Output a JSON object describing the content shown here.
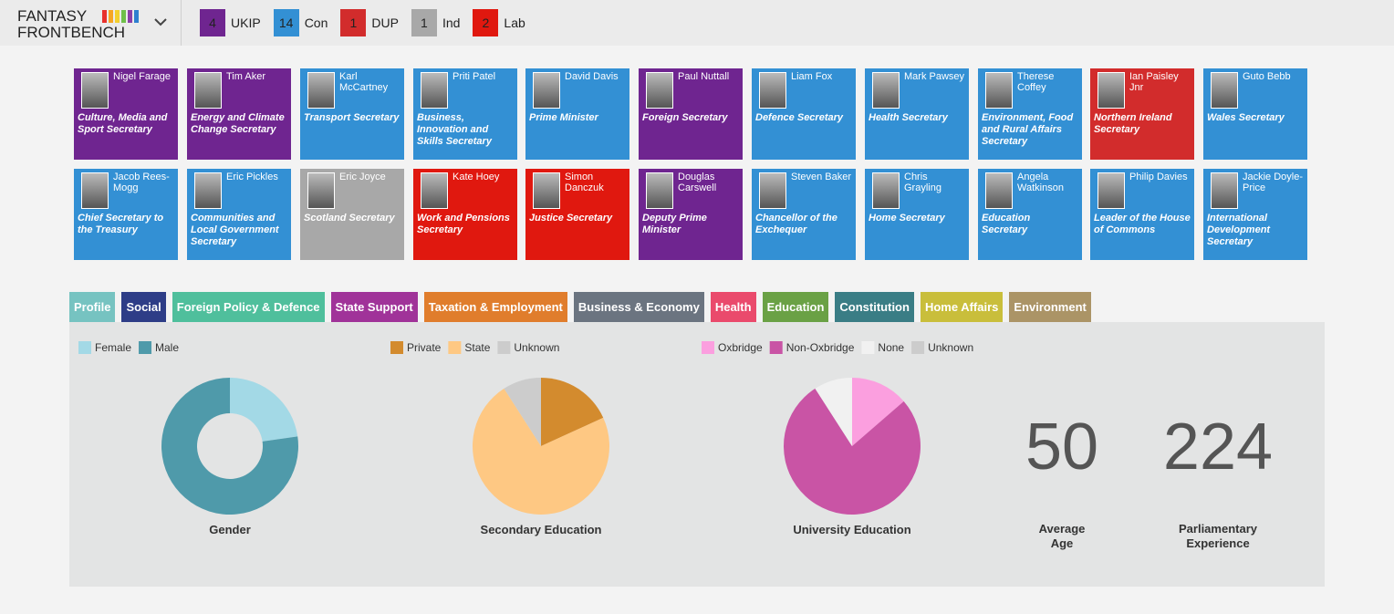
{
  "header": {
    "logo_line1": "FANTASY",
    "logo_line2": "FRONTBENCH",
    "parties": [
      {
        "count": 4,
        "name": "UKIP",
        "color": "#6f2590"
      },
      {
        "count": 14,
        "name": "Con",
        "color": "#3390d4"
      },
      {
        "count": 1,
        "name": "DUP",
        "color": "#d22c2c"
      },
      {
        "count": 1,
        "name": "Ind",
        "color": "#a8a8a8"
      },
      {
        "count": 2,
        "name": "Lab",
        "color": "#e0180f"
      }
    ]
  },
  "cabinet": [
    {
      "name": "Nigel Farage",
      "role": "Culture, Media and Sport Secretary",
      "color": "#6f2590"
    },
    {
      "name": "Tim Aker",
      "role": "Energy and Climate Change Secretary",
      "color": "#6f2590"
    },
    {
      "name": "Karl McCartney",
      "role": "Transport Secretary",
      "color": "#3390d4"
    },
    {
      "name": "Priti Patel",
      "role": "Business, Innovation and Skills Secretary",
      "color": "#3390d4"
    },
    {
      "name": "David Davis",
      "role": "Prime Minister",
      "color": "#3390d4"
    },
    {
      "name": "Paul Nuttall",
      "role": "Foreign Secretary",
      "color": "#6f2590"
    },
    {
      "name": "Liam Fox",
      "role": "Defence Secretary",
      "color": "#3390d4"
    },
    {
      "name": "Mark Pawsey",
      "role": "Health Secretary",
      "color": "#3390d4"
    },
    {
      "name": "Therese Coffey",
      "role": "Environment, Food and Rural Affairs Secretary",
      "color": "#3390d4"
    },
    {
      "name": "Ian Paisley Jnr",
      "role": "Northern Ireland Secretary",
      "color": "#d22c2c"
    },
    {
      "name": "Guto Bebb",
      "role": "Wales Secretary",
      "color": "#3390d4"
    },
    {
      "name": "Jacob Rees-Mogg",
      "role": "Chief Secretary to the Treasury",
      "color": "#3390d4"
    },
    {
      "name": "Eric Pickles",
      "role": "Communities and Local Government Secretary",
      "color": "#3390d4"
    },
    {
      "name": "Eric Joyce",
      "role": "Scotland Secretary",
      "color": "#a8a8a8"
    },
    {
      "name": "Kate Hoey",
      "role": "Work and Pensions Secretary",
      "color": "#e0180f"
    },
    {
      "name": "Simon Danczuk",
      "role": "Justice Secretary",
      "color": "#e0180f"
    },
    {
      "name": "Douglas Carswell",
      "role": "Deputy Prime Minister",
      "color": "#6f2590"
    },
    {
      "name": "Steven Baker",
      "role": "Chancellor of the Exchequer",
      "color": "#3390d4"
    },
    {
      "name": "Chris Grayling",
      "role": "Home Secretary",
      "color": "#3390d4"
    },
    {
      "name": "Angela Watkinson",
      "role": "Education Secretary",
      "color": "#3390d4"
    },
    {
      "name": "Philip Davies",
      "role": "Leader of the House of Commons",
      "color": "#3390d4"
    },
    {
      "name": "Jackie Doyle-Price",
      "role": "International Development Secretary",
      "color": "#3390d4"
    }
  ],
  "tabs": [
    {
      "label": "Profile",
      "color": "#76c3c1"
    },
    {
      "label": "Social",
      "color": "#2e3d87"
    },
    {
      "label": "Foreign Policy & Defence",
      "color": "#4fbf9c"
    },
    {
      "label": "State Support",
      "color": "#a03399"
    },
    {
      "label": "Taxation & Employment",
      "color": "#e07d2c"
    },
    {
      "label": "Business & Economy",
      "color": "#6b7480"
    },
    {
      "label": "Health",
      "color": "#ea4a6c"
    },
    {
      "label": "Education",
      "color": "#6aa145"
    },
    {
      "label": "Constitution",
      "color": "#3a7d85"
    },
    {
      "label": "Home Affairs",
      "color": "#c9be3b"
    },
    {
      "label": "Environment",
      "color": "#ab9466"
    }
  ],
  "charts": [
    {
      "type": "pie",
      "title": "Gender",
      "donut": true,
      "categories": [
        "Female",
        "Male"
      ],
      "values": [
        5,
        17
      ],
      "colors": [
        "#a3d9e6",
        "#4f9aaa"
      ]
    },
    {
      "type": "pie",
      "title": "Secondary Education",
      "donut": false,
      "categories": [
        "Private",
        "State",
        "Unknown"
      ],
      "values": [
        4,
        16,
        2
      ],
      "colors": [
        "#d38b2e",
        "#fec883",
        "#cccccc"
      ]
    },
    {
      "type": "pie",
      "title": "University Education",
      "donut": false,
      "categories": [
        "Oxbridge",
        "Non-Oxbridge",
        "None",
        "Unknown"
      ],
      "values": [
        3,
        17,
        2,
        0
      ],
      "colors": [
        "#fb9fdf",
        "#c954a5",
        "#f1f1f1",
        "#cccccc"
      ]
    }
  ],
  "stats": [
    {
      "value": 50,
      "label": "Average Age"
    },
    {
      "value": 224,
      "label": "Parliamentary Experience"
    }
  ]
}
